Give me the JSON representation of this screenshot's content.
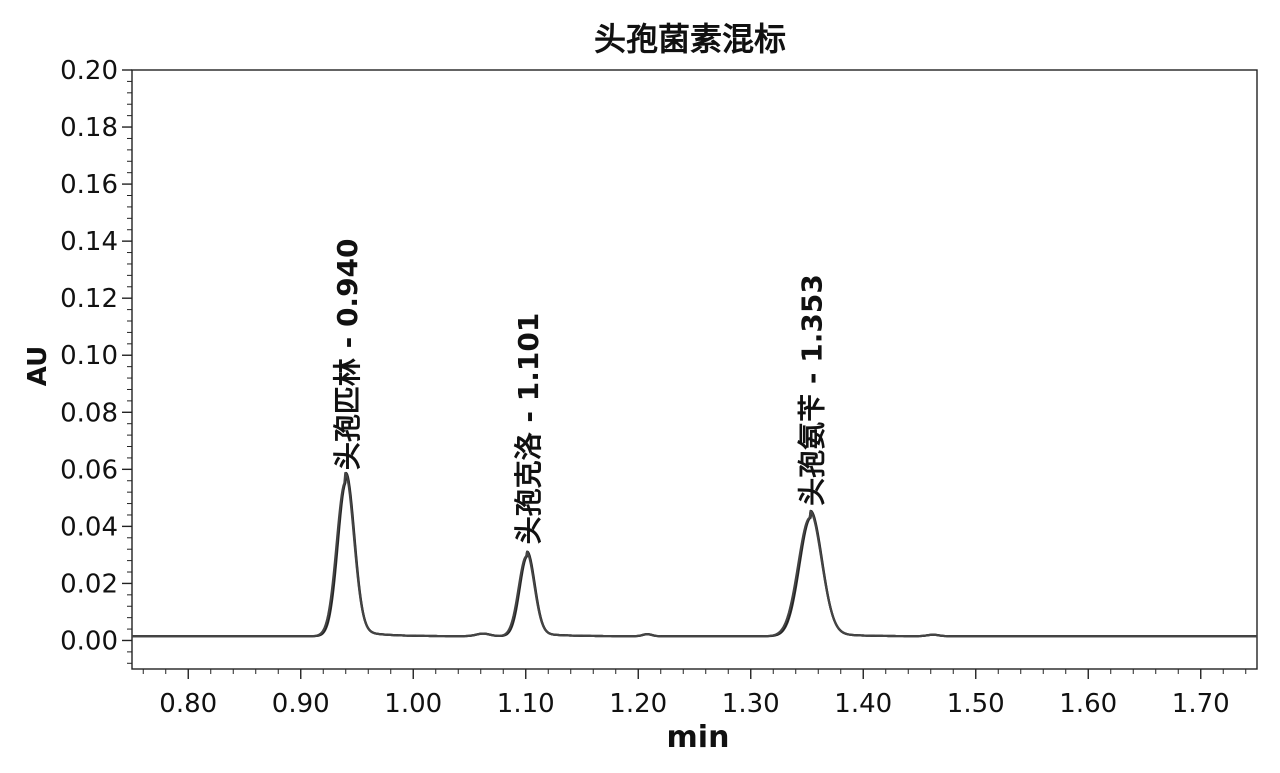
{
  "chart_data": {
    "type": "line",
    "title": "头孢菌素混标",
    "xlabel": "min",
    "ylabel": "AU",
    "xlim": [
      0.75,
      1.75
    ],
    "ylim": [
      -0.01,
      0.2
    ],
    "x_ticks": [
      "0.80",
      "0.90",
      "1.00",
      "1.10",
      "1.20",
      "1.30",
      "1.40",
      "1.50",
      "1.60",
      "1.70"
    ],
    "y_ticks": [
      "0.00",
      "0.02",
      "0.04",
      "0.06",
      "0.08",
      "0.10",
      "0.12",
      "0.14",
      "0.16",
      "0.18",
      "0.20"
    ],
    "baseline": 0.0015,
    "peaks": [
      {
        "label": "头孢匹林 - 0.940",
        "rt": 0.94,
        "height": 0.0555
      },
      {
        "label": "头孢克洛 - 1.101",
        "rt": 1.101,
        "height": 0.0295
      },
      {
        "label": "头孢氨苄 - 1.353",
        "rt": 1.353,
        "height": 0.043
      }
    ],
    "grid": false,
    "legend": "none"
  }
}
